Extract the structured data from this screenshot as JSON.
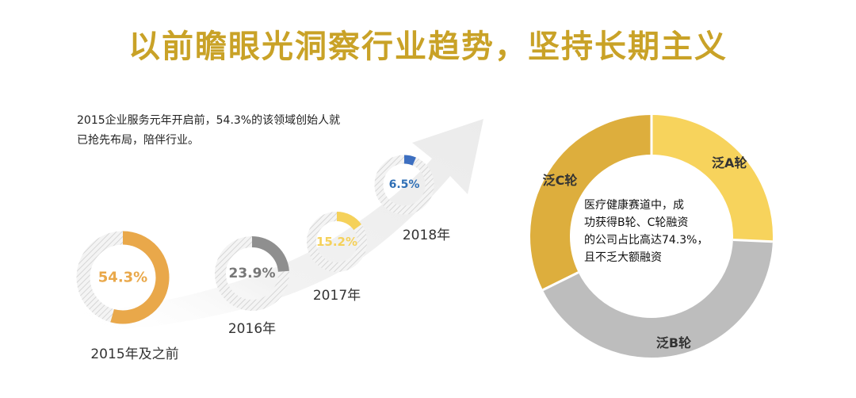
{
  "header": {
    "title": "以前瞻眼光洞察行业趋势，坚持长期主义"
  },
  "intro": {
    "line1": "2015企业服务元年开启前，54.3%的该领域创始人就",
    "line2": "已抢先布局，陪伴行业。"
  },
  "chart_data": [
    {
      "type": "pie",
      "subtype": "progress-rings",
      "categories": [
        "2015年及之前",
        "2016年",
        "2017年",
        "2018年"
      ],
      "values": [
        54.3,
        23.9,
        15.2,
        6.5
      ],
      "value_labels": [
        "54.3%",
        "23.9%",
        "15.2%",
        "6.5%"
      ],
      "colors": [
        "#e9a84a",
        "#8f8f8f",
        "#f5d15a",
        "#3d6fc0"
      ]
    },
    {
      "type": "pie",
      "subtype": "donut",
      "categories": [
        "泛A轮",
        "泛B轮",
        "泛C轮"
      ],
      "values": [
        25.7,
        42.0,
        32.3
      ],
      "colors": [
        "#f7d35c",
        "#bdbdbd",
        "#ddae3d"
      ],
      "center_text": [
        "医疗健康赛道中，成",
        "功获得B轮、C轮融资",
        "的公司占比高达74.3%，",
        "且不乏大额融资"
      ]
    }
  ]
}
